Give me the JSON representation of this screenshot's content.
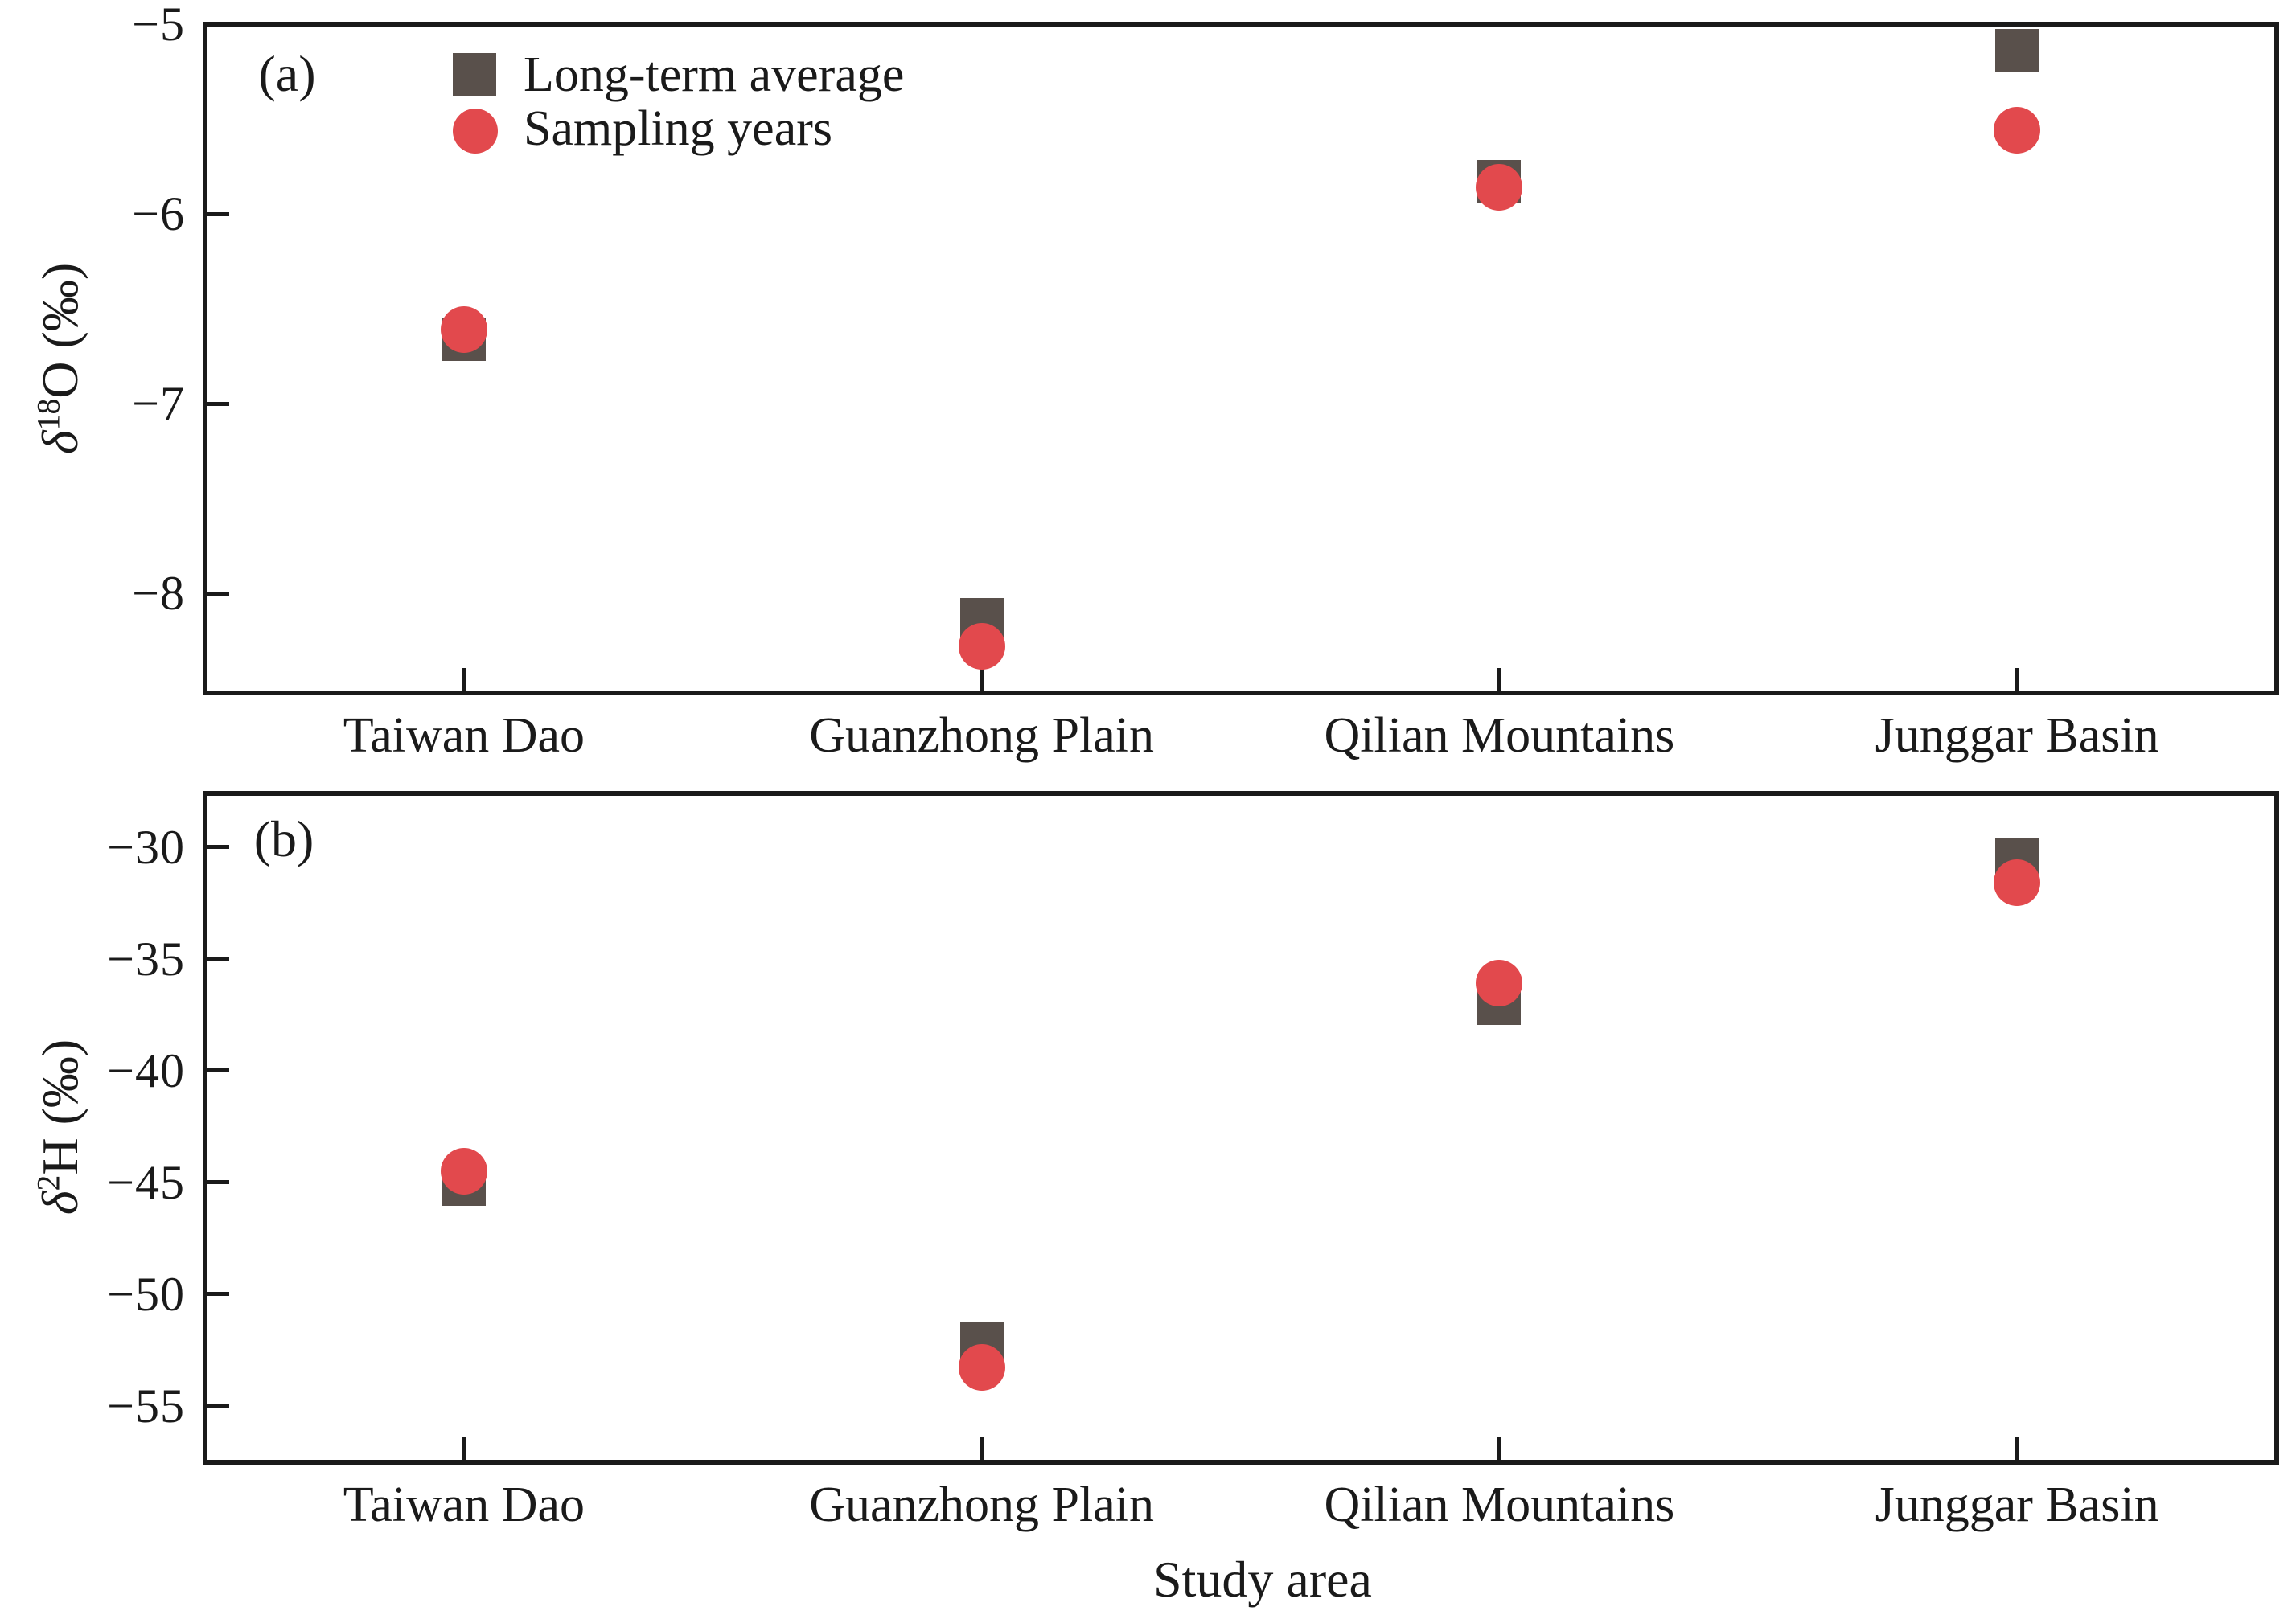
{
  "figure": {
    "x_axis_title": "Study area",
    "categories": [
      "Taiwan Dao",
      "Guanzhong Plain",
      "Qilian Mountains",
      "Junggar Basin"
    ],
    "legend": [
      {
        "label": "Long-term average",
        "marker": "square",
        "color": "#59504b"
      },
      {
        "label": "Sampling years",
        "marker": "circle",
        "color": "#e2494d"
      }
    ],
    "frame_color": "#1a1a1a"
  },
  "chart_data": [
    {
      "type": "scatter",
      "panel_label": "(a)",
      "ylabel": "δ18O (‰)",
      "ylabel_parts": {
        "sym": "δ",
        "sup": "18",
        "rest": "O (‰)"
      },
      "categories": [
        "Taiwan Dao",
        "Guanzhong Plain",
        "Qilian Mountains",
        "Junggar Basin"
      ],
      "series": [
        {
          "name": "Long-term average",
          "marker": "square",
          "color": "#59504b",
          "values": [
            -6.66,
            -8.14,
            -5.83,
            -5.14
          ]
        },
        {
          "name": "Sampling years",
          "marker": "circle",
          "color": "#e2494d",
          "values": [
            -6.61,
            -8.28,
            -5.86,
            -5.56
          ]
        }
      ],
      "yticks": [
        -5,
        -6,
        -7,
        -8
      ],
      "ylim": [
        -8.52,
        -5.0
      ],
      "grid": false,
      "legend_position": "top-left-inside"
    },
    {
      "type": "scatter",
      "panel_label": "(b)",
      "ylabel": "δ2H (‰)",
      "ylabel_parts": {
        "sym": "δ",
        "sup": "2",
        "rest": "H (‰)"
      },
      "categories": [
        "Taiwan Dao",
        "Guanzhong Plain",
        "Qilian Mountains",
        "Junggar Basin"
      ],
      "series": [
        {
          "name": "Long-term average",
          "marker": "square",
          "color": "#59504b",
          "values": [
            -45.1,
            -52.2,
            -37.0,
            -30.6
          ]
        },
        {
          "name": "Sampling years",
          "marker": "circle",
          "color": "#e2494d",
          "values": [
            -44.5,
            -53.3,
            -36.1,
            -31.6
          ]
        }
      ],
      "yticks": [
        -30,
        -35,
        -40,
        -45,
        -50,
        -55
      ],
      "ylim": [
        -57.5,
        -27.6
      ],
      "grid": false,
      "legend_position": "none"
    }
  ]
}
